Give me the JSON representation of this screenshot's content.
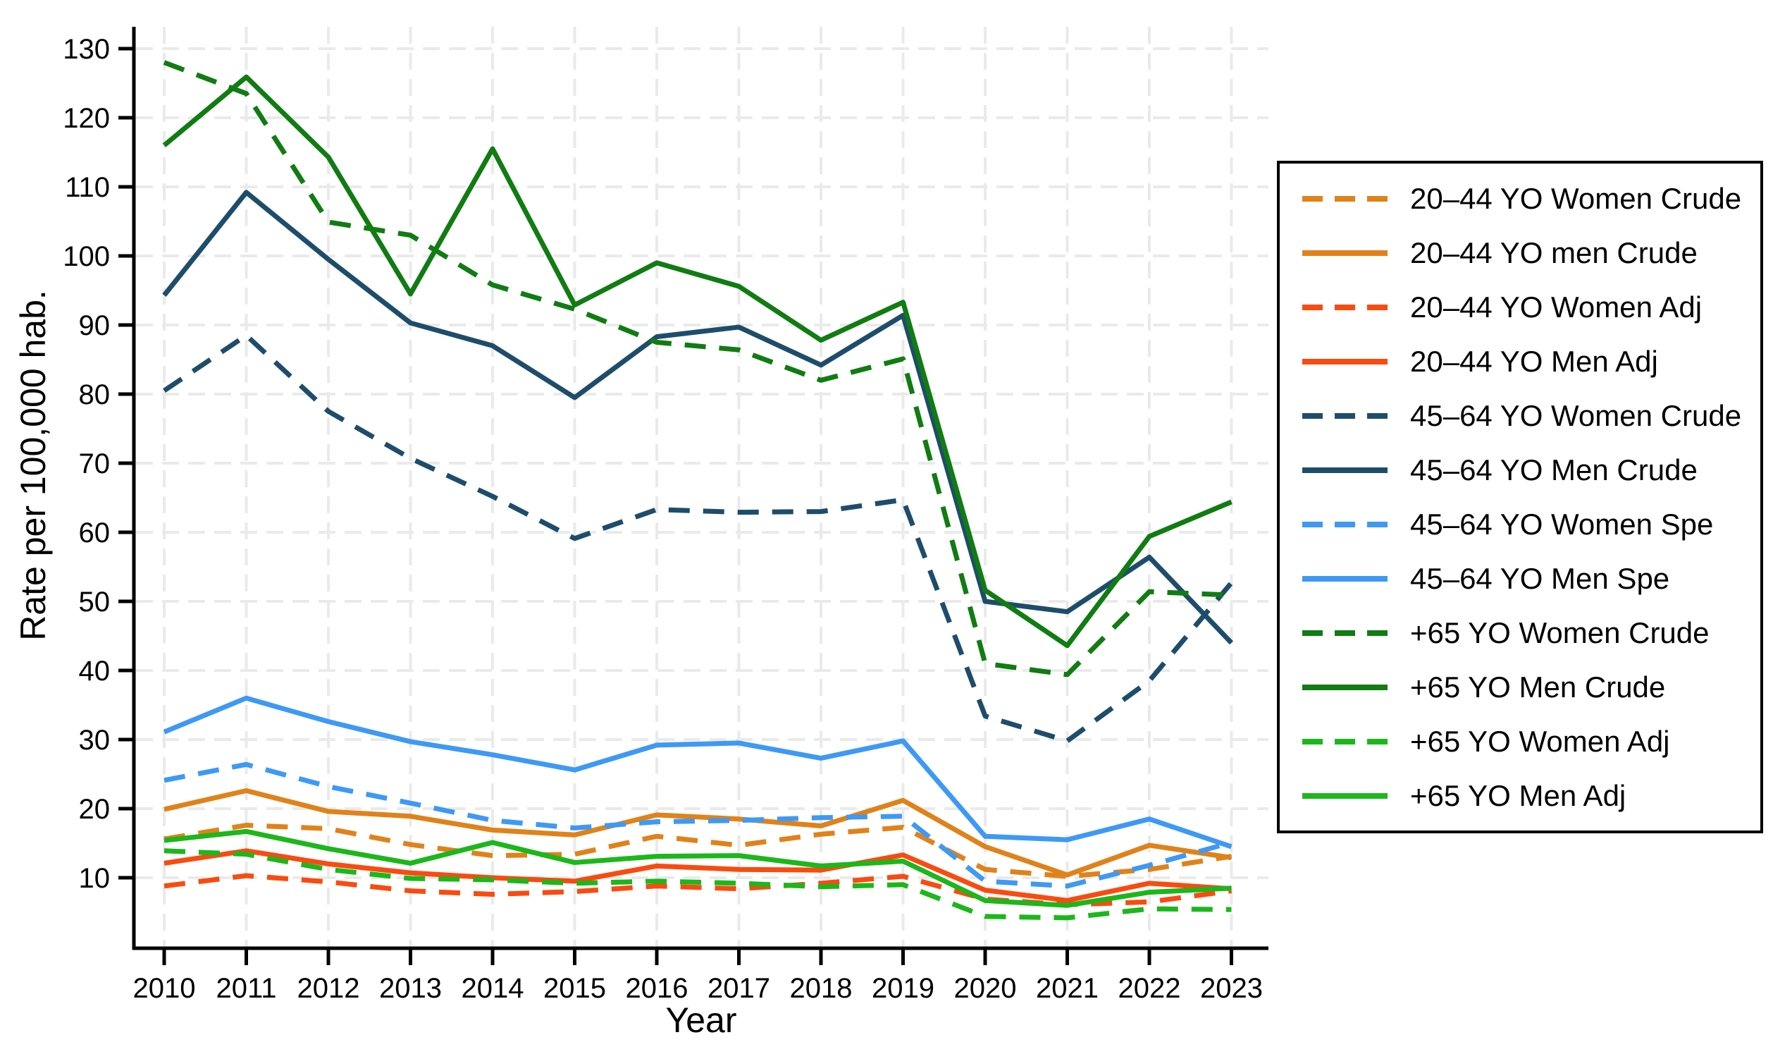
{
  "chart_data": {
    "type": "line",
    "title": "",
    "xlabel": "Year",
    "ylabel": "Rate per 100,000 hab.",
    "x": [
      2010,
      2011,
      2012,
      2013,
      2014,
      2015,
      2016,
      2017,
      2018,
      2019,
      2020,
      2021,
      2022,
      2023
    ],
    "y_ticks": [
      10,
      20,
      30,
      40,
      50,
      60,
      70,
      80,
      90,
      100,
      110,
      120,
      130
    ],
    "ylim": [
      0,
      133
    ],
    "grid": true,
    "legend_position": "right",
    "grid_color": "#EAEAEA",
    "axis_color": "#000000",
    "series": [
      {
        "name": "20–44 YO Women Crude",
        "color": "#E0821A",
        "dash": true,
        "values": [
          15.6,
          17.6,
          17.1,
          14.8,
          13.2,
          13.4,
          16.0,
          14.7,
          16.3,
          17.3,
          11.2,
          10.2,
          11.2,
          13.1
        ]
      },
      {
        "name": "20–44 YO men Crude",
        "color": "#E0821A",
        "dash": false,
        "values": [
          19.9,
          22.6,
          19.6,
          18.9,
          16.9,
          16.2,
          19.1,
          18.5,
          17.5,
          21.2,
          14.5,
          10.4,
          14.7,
          12.9
        ]
      },
      {
        "name": "20–44 YO Women Adj",
        "color": "#F94B10",
        "dash": true,
        "values": [
          8.8,
          10.3,
          9.4,
          8.1,
          7.6,
          8.0,
          8.8,
          8.4,
          9.2,
          10.2,
          6.9,
          6.1,
          6.5,
          8.1
        ]
      },
      {
        "name": "20–44 YO Men Adj",
        "color": "#F94B10",
        "dash": false,
        "values": [
          12.1,
          13.9,
          12.0,
          10.7,
          10.0,
          9.5,
          11.7,
          11.2,
          11.1,
          13.3,
          8.2,
          6.7,
          9.2,
          8.4
        ]
      },
      {
        "name": "45–64 YO Women Crude",
        "color": "#1E4D6B",
        "dash": true,
        "values": [
          80.5,
          88.5,
          77.5,
          70.7,
          65.2,
          59.1,
          63.3,
          62.9,
          63.0,
          64.7,
          33.4,
          29.8,
          38.5,
          52.7
        ]
      },
      {
        "name": "45–64 YO Men Crude",
        "color": "#1E4D6B",
        "dash": false,
        "values": [
          94.3,
          109.2,
          99.5,
          90.3,
          87.0,
          79.5,
          88.3,
          89.7,
          84.2,
          91.4,
          50.0,
          48.5,
          56.4,
          44.0
        ]
      },
      {
        "name": "45–64 YO Women Spe",
        "color": "#3E99F5",
        "dash": true,
        "values": [
          24.1,
          26.4,
          23.2,
          20.8,
          18.3,
          17.2,
          18.1,
          18.3,
          18.7,
          18.9,
          9.5,
          8.8,
          11.8,
          15.1
        ]
      },
      {
        "name": "45–64 YO Men Spe",
        "color": "#3E99F5",
        "dash": false,
        "values": [
          31.1,
          36.0,
          32.6,
          29.7,
          27.8,
          25.6,
          29.2,
          29.5,
          27.3,
          29.8,
          16.0,
          15.5,
          18.5,
          14.5
        ]
      },
      {
        "name": "+65 YO Women Crude",
        "color": "#107C12",
        "dash": true,
        "values": [
          128.0,
          123.5,
          104.9,
          103.0,
          95.8,
          92.3,
          87.5,
          86.4,
          82.0,
          85.1,
          41.0,
          39.4,
          51.4,
          50.9
        ]
      },
      {
        "name": "+65 YO Men Crude",
        "color": "#107C12",
        "dash": false,
        "values": [
          116.0,
          125.9,
          114.3,
          94.5,
          115.5,
          92.9,
          99.0,
          95.6,
          87.8,
          93.3,
          51.6,
          43.6,
          59.4,
          64.4
        ]
      },
      {
        "name": "+65 YO Women Adj",
        "color": "#1CB71B",
        "dash": true,
        "values": [
          13.9,
          13.4,
          11.2,
          9.9,
          9.7,
          9.2,
          9.5,
          9.2,
          8.7,
          9.0,
          4.4,
          4.2,
          5.5,
          5.4
        ]
      },
      {
        "name": "+65 YO Men Adj",
        "color": "#1CB71B",
        "dash": false,
        "values": [
          15.4,
          16.7,
          14.2,
          12.1,
          15.1,
          12.2,
          13.1,
          13.2,
          11.7,
          12.4,
          6.7,
          6.0,
          7.9,
          8.5
        ]
      }
    ]
  }
}
